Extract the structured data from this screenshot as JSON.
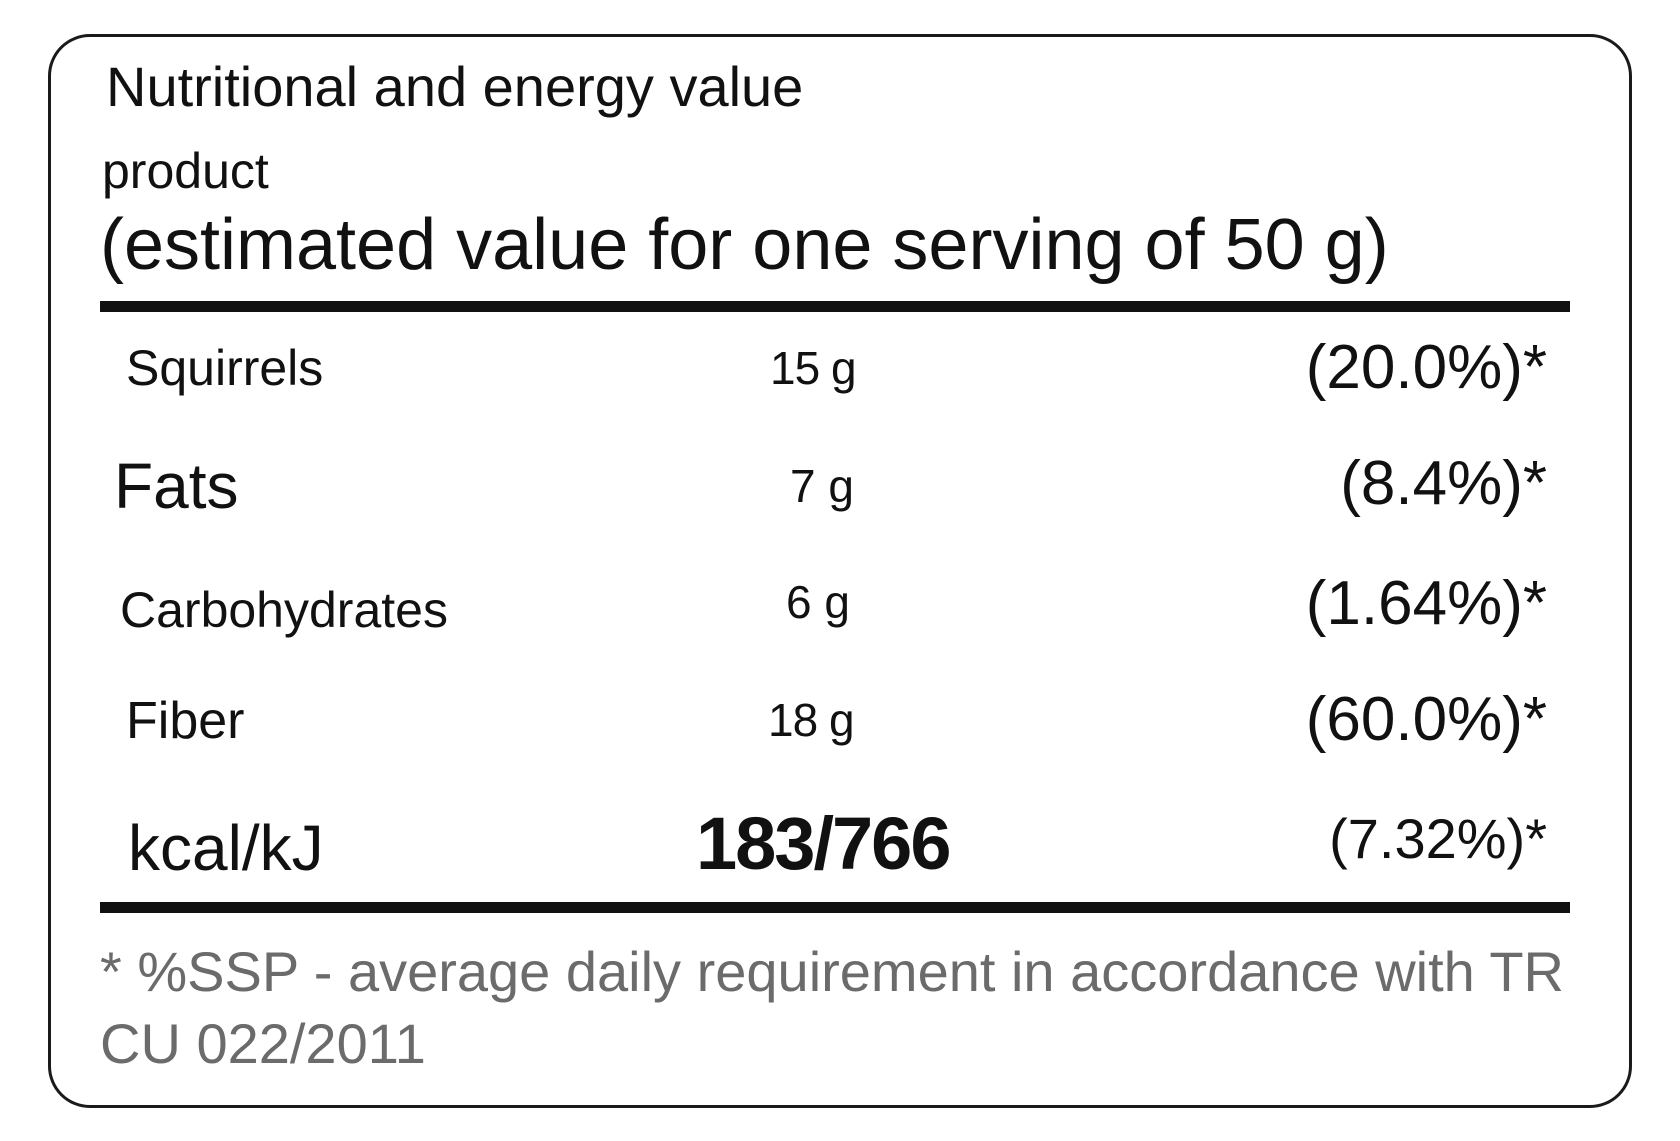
{
  "label": {
    "title": "Nutritional and energy value",
    "subtitle": "product",
    "serving_note": "(estimated value for one serving of 50 g)"
  },
  "rows": [
    {
      "name": "Squirrels",
      "amount": "15 g",
      "percent": "(20.0%)*"
    },
    {
      "name": "Fats",
      "amount": "7 g",
      "percent": "(8.4%)*"
    },
    {
      "name": "Carbohydrates",
      "amount": "6 g",
      "percent": "(1.64%)*"
    },
    {
      "name": "Fiber",
      "amount": "18 g",
      "percent": "(60.0%)*"
    },
    {
      "name": "kcal/kJ",
      "amount": "183/766",
      "percent": "(7.32%)*"
    }
  ],
  "footnote": {
    "text": "* %SSP - average daily requirement in accordance with TR CU 022/2011"
  }
}
